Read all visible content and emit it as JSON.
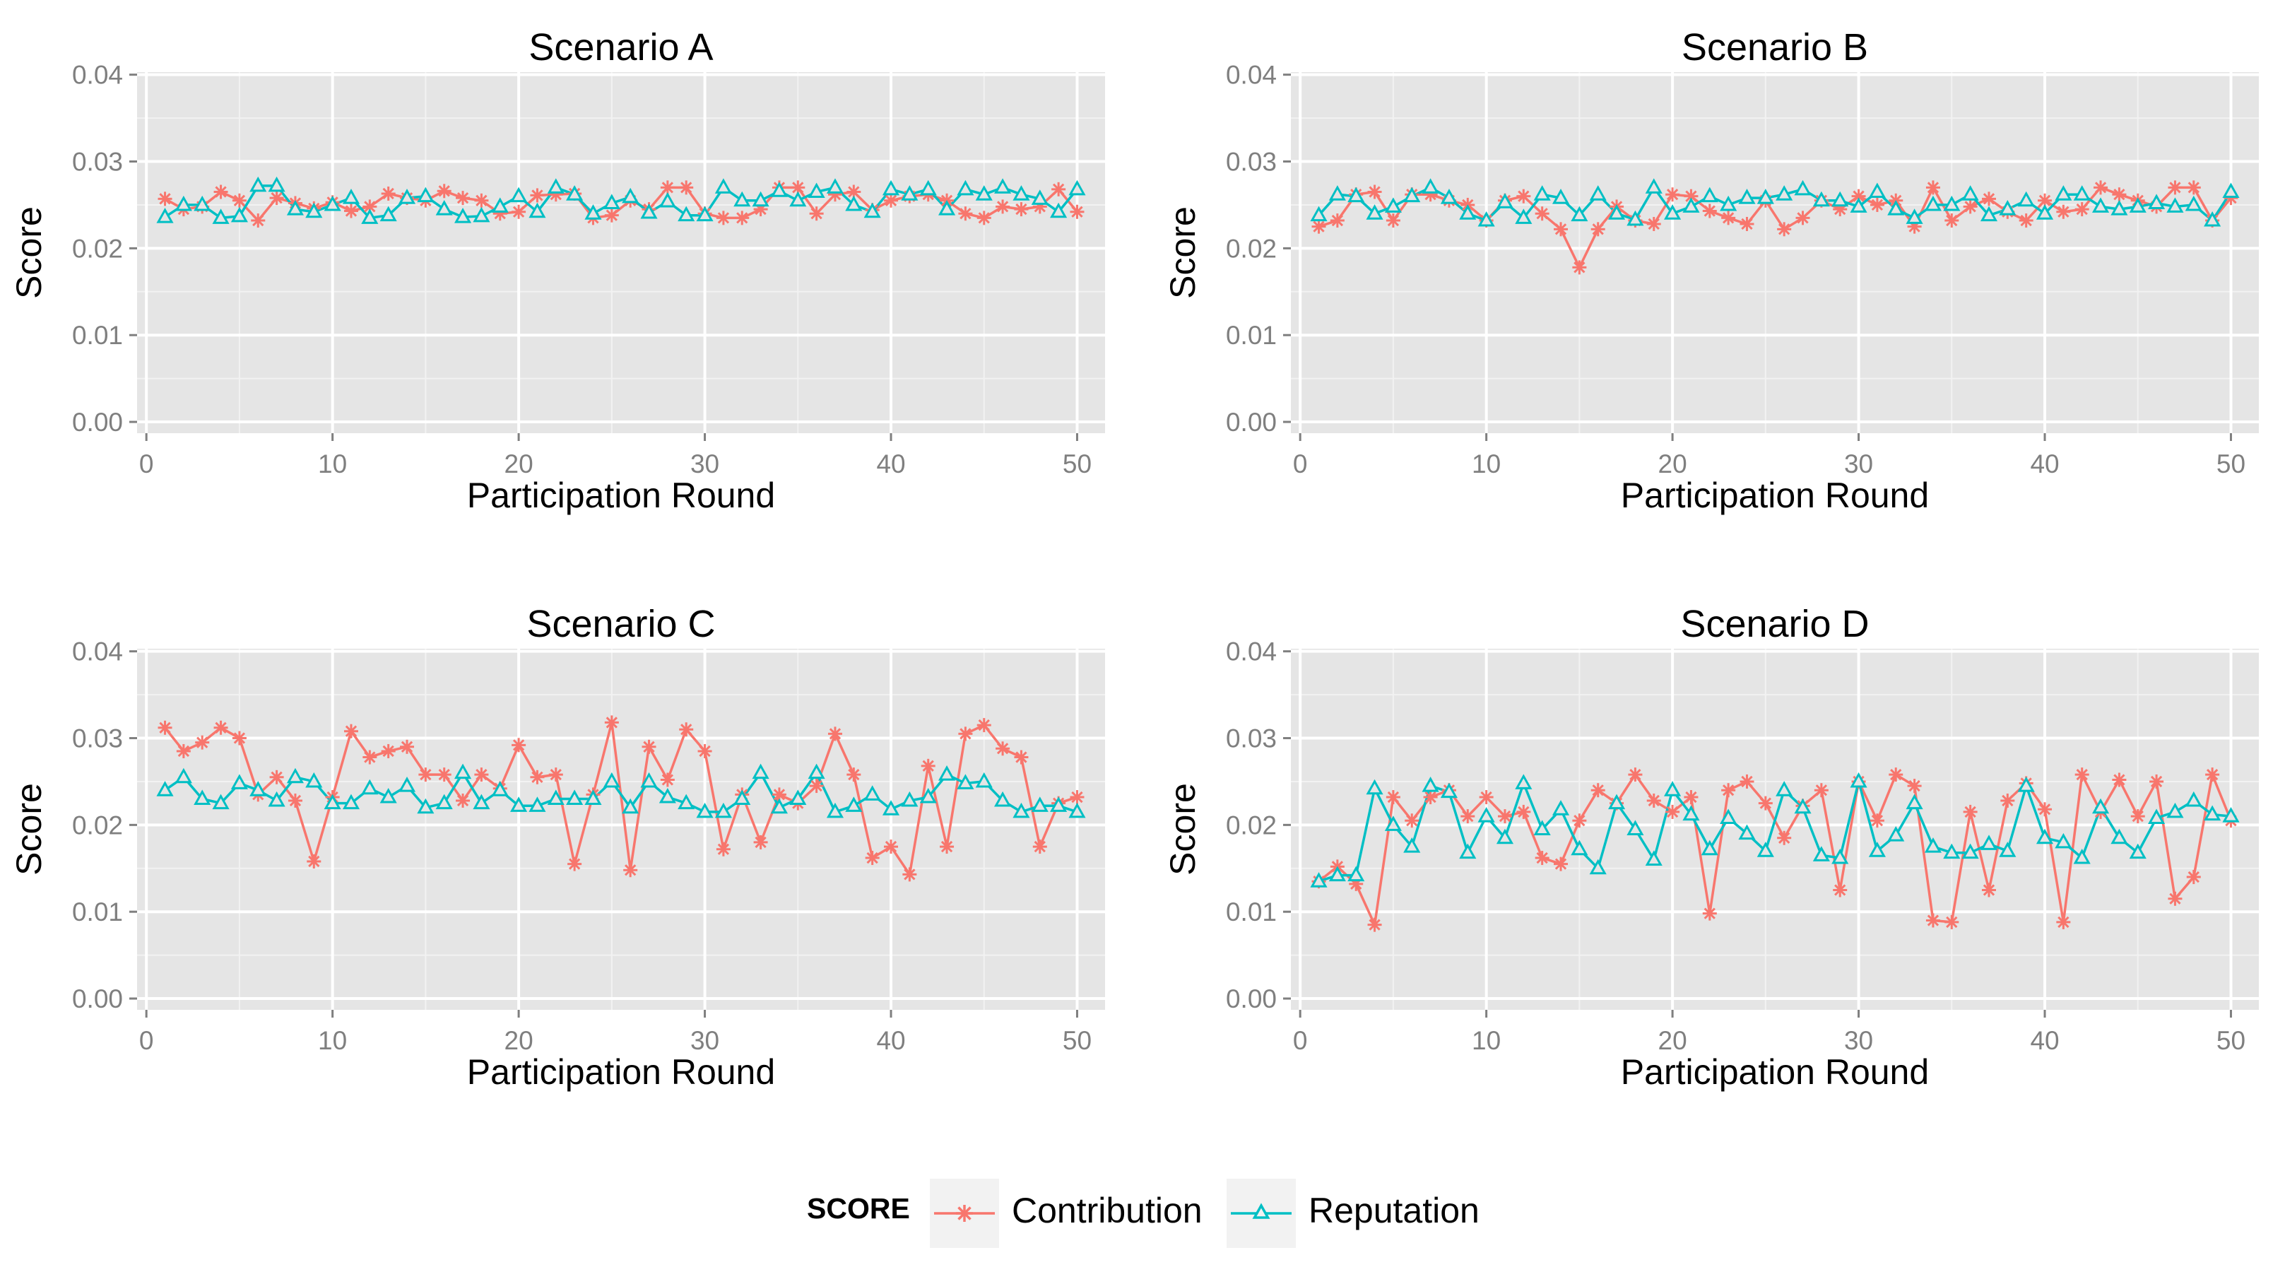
{
  "legend": {
    "title": "SCORE",
    "items": [
      {
        "label": "Contribution",
        "color": "#F8766D",
        "marker": "asterisk"
      },
      {
        "label": "Reputation",
        "color": "#00BFC4",
        "marker": "triangle"
      }
    ]
  },
  "chart_data": [
    {
      "type": "line",
      "title": "Scenario A",
      "xlabel": "Participation Round",
      "ylabel": "Score",
      "xlim": [
        -0.5,
        51.5
      ],
      "ylim": [
        -0.0013,
        0.0403
      ],
      "xticks": [
        0,
        10,
        20,
        30,
        40,
        50
      ],
      "yticks": [
        0.0,
        0.01,
        0.02,
        0.03,
        0.04
      ],
      "ytick_labels": [
        "0.00",
        "0.01",
        "0.02",
        "0.03",
        "0.04"
      ],
      "grid": true,
      "x": [
        1,
        2,
        3,
        4,
        5,
        6,
        7,
        8,
        9,
        10,
        11,
        12,
        13,
        14,
        15,
        16,
        17,
        18,
        19,
        20,
        21,
        22,
        23,
        24,
        25,
        26,
        27,
        28,
        29,
        30,
        31,
        32,
        33,
        34,
        35,
        36,
        37,
        38,
        39,
        40,
        41,
        42,
        43,
        44,
        45,
        46,
        47,
        48,
        49,
        50
      ],
      "series": [
        {
          "name": "Contribution",
          "values": [
            0.0257,
            0.0245,
            0.0248,
            0.0265,
            0.0255,
            0.0232,
            0.0258,
            0.0252,
            0.0246,
            0.0253,
            0.0243,
            0.0248,
            0.0263,
            0.0258,
            0.0255,
            0.0266,
            0.0258,
            0.0255,
            0.024,
            0.0242,
            0.0261,
            0.0262,
            0.0263,
            0.0235,
            0.0238,
            0.0255,
            0.0245,
            0.027,
            0.027,
            0.024,
            0.0235,
            0.0235,
            0.0245,
            0.027,
            0.027,
            0.024,
            0.0262,
            0.0265,
            0.0244,
            0.0255,
            0.026,
            0.0262,
            0.0255,
            0.024,
            0.0235,
            0.0248,
            0.0245,
            0.0248,
            0.0268,
            0.0242
          ]
        },
        {
          "name": "Reputation",
          "values": [
            0.0236,
            0.025,
            0.025,
            0.0235,
            0.0237,
            0.0272,
            0.0272,
            0.0245,
            0.0242,
            0.025,
            0.0258,
            0.0235,
            0.0238,
            0.0258,
            0.026,
            0.0245,
            0.0236,
            0.0237,
            0.0248,
            0.026,
            0.0242,
            0.027,
            0.0262,
            0.024,
            0.0252,
            0.0259,
            0.0241,
            0.0254,
            0.0238,
            0.0238,
            0.027,
            0.0255,
            0.0255,
            0.0266,
            0.0255,
            0.0265,
            0.027,
            0.025,
            0.0242,
            0.0268,
            0.0262,
            0.0268,
            0.0245,
            0.0268,
            0.0262,
            0.027,
            0.0262,
            0.0257,
            0.0242,
            0.0268
          ]
        }
      ]
    },
    {
      "type": "line",
      "title": "Scenario B",
      "xlabel": "Participation Round",
      "ylabel": "Score",
      "xlim": [
        -0.5,
        51.5
      ],
      "ylim": [
        -0.0013,
        0.0403
      ],
      "xticks": [
        0,
        10,
        20,
        30,
        40,
        50
      ],
      "yticks": [
        0.0,
        0.01,
        0.02,
        0.03,
        0.04
      ],
      "ytick_labels": [
        "0.00",
        "0.01",
        "0.02",
        "0.03",
        "0.04"
      ],
      "grid": true,
      "x": [
        1,
        2,
        3,
        4,
        5,
        6,
        7,
        8,
        9,
        10,
        11,
        12,
        13,
        14,
        15,
        16,
        17,
        18,
        19,
        20,
        21,
        22,
        23,
        24,
        25,
        26,
        27,
        28,
        29,
        30,
        31,
        32,
        33,
        34,
        35,
        36,
        37,
        38,
        39,
        40,
        41,
        42,
        43,
        44,
        45,
        46,
        47,
        48,
        49,
        50
      ],
      "series": [
        {
          "name": "Contribution",
          "values": [
            0.0225,
            0.0232,
            0.0262,
            0.0265,
            0.0232,
            0.0262,
            0.0262,
            0.0255,
            0.025,
            0.0232,
            0.0255,
            0.026,
            0.024,
            0.0222,
            0.0178,
            0.0222,
            0.0248,
            0.0232,
            0.0228,
            0.0262,
            0.026,
            0.0243,
            0.0235,
            0.0228,
            0.0255,
            0.0222,
            0.0235,
            0.0255,
            0.0245,
            0.026,
            0.025,
            0.0255,
            0.0225,
            0.027,
            0.0232,
            0.0248,
            0.0257,
            0.0242,
            0.0232,
            0.0255,
            0.0242,
            0.0245,
            0.027,
            0.0262,
            0.0255,
            0.0248,
            0.027,
            0.027,
            0.0232,
            0.0258
          ]
        },
        {
          "name": "Reputation",
          "values": [
            0.0238,
            0.0262,
            0.026,
            0.024,
            0.0248,
            0.026,
            0.027,
            0.0258,
            0.024,
            0.0232,
            0.0253,
            0.0235,
            0.0262,
            0.0258,
            0.0238,
            0.0262,
            0.024,
            0.0233,
            0.027,
            0.024,
            0.0248,
            0.026,
            0.025,
            0.0258,
            0.0258,
            0.0262,
            0.0268,
            0.0255,
            0.0255,
            0.0248,
            0.0265,
            0.0245,
            0.0235,
            0.025,
            0.025,
            0.0262,
            0.0238,
            0.0245,
            0.0255,
            0.024,
            0.0262,
            0.0262,
            0.0248,
            0.0245,
            0.0248,
            0.0252,
            0.0248,
            0.025,
            0.0232,
            0.0265
          ]
        }
      ]
    },
    {
      "type": "line",
      "title": "Scenario C",
      "xlabel": "Participation Round",
      "ylabel": "Score",
      "xlim": [
        -0.5,
        51.5
      ],
      "ylim": [
        -0.0013,
        0.0403
      ],
      "xticks": [
        0,
        10,
        20,
        30,
        40,
        50
      ],
      "yticks": [
        0.0,
        0.01,
        0.02,
        0.03,
        0.04
      ],
      "ytick_labels": [
        "0.00",
        "0.01",
        "0.02",
        "0.03",
        "0.04"
      ],
      "grid": true,
      "x": [
        1,
        2,
        3,
        4,
        5,
        6,
        7,
        8,
        9,
        10,
        11,
        12,
        13,
        14,
        15,
        16,
        17,
        18,
        19,
        20,
        21,
        22,
        23,
        24,
        25,
        26,
        27,
        28,
        29,
        30,
        31,
        32,
        33,
        34,
        35,
        36,
        37,
        38,
        39,
        40,
        41,
        42,
        43,
        44,
        45,
        46,
        47,
        48,
        49,
        50
      ],
      "series": [
        {
          "name": "Contribution",
          "values": [
            0.0312,
            0.0285,
            0.0295,
            0.0312,
            0.03,
            0.0235,
            0.0255,
            0.0228,
            0.0158,
            0.0232,
            0.0308,
            0.0278,
            0.0285,
            0.029,
            0.0258,
            0.0258,
            0.0228,
            0.0258,
            0.0242,
            0.0292,
            0.0255,
            0.0258,
            0.0155,
            0.0235,
            0.0318,
            0.0148,
            0.029,
            0.0252,
            0.031,
            0.0285,
            0.0172,
            0.0235,
            0.018,
            0.0235,
            0.0225,
            0.0245,
            0.0305,
            0.0258,
            0.0162,
            0.0175,
            0.0143,
            0.0268,
            0.0175,
            0.0305,
            0.0315,
            0.0288,
            0.0278,
            0.0175,
            0.0225,
            0.0232
          ]
        },
        {
          "name": "Reputation",
          "values": [
            0.024,
            0.0255,
            0.023,
            0.0225,
            0.0248,
            0.024,
            0.0228,
            0.0255,
            0.025,
            0.0225,
            0.0225,
            0.0242,
            0.0232,
            0.0245,
            0.022,
            0.0225,
            0.026,
            0.0225,
            0.024,
            0.0222,
            0.0222,
            0.023,
            0.023,
            0.023,
            0.025,
            0.022,
            0.025,
            0.0232,
            0.0225,
            0.0215,
            0.0215,
            0.023,
            0.026,
            0.022,
            0.023,
            0.026,
            0.0215,
            0.0222,
            0.0235,
            0.0218,
            0.0228,
            0.0232,
            0.0258,
            0.0248,
            0.025,
            0.0228,
            0.0215,
            0.0222,
            0.0222,
            0.0215
          ]
        }
      ]
    },
    {
      "type": "line",
      "title": "Scenario D",
      "xlabel": "Participation Round",
      "ylabel": "Score",
      "xlim": [
        -0.5,
        51.5
      ],
      "ylim": [
        -0.0013,
        0.0403
      ],
      "xticks": [
        0,
        10,
        20,
        30,
        40,
        50
      ],
      "yticks": [
        0.0,
        0.01,
        0.02,
        0.03,
        0.04
      ],
      "ytick_labels": [
        "0.00",
        "0.01",
        "0.02",
        "0.03",
        "0.04"
      ],
      "grid": true,
      "x": [
        1,
        2,
        3,
        4,
        5,
        6,
        7,
        8,
        9,
        10,
        11,
        12,
        13,
        14,
        15,
        16,
        17,
        18,
        19,
        20,
        21,
        22,
        23,
        24,
        25,
        26,
        27,
        28,
        29,
        30,
        31,
        32,
        33,
        34,
        35,
        36,
        37,
        38,
        39,
        40,
        41,
        42,
        43,
        44,
        45,
        46,
        47,
        48,
        49,
        50
      ],
      "series": [
        {
          "name": "Contribution",
          "values": [
            0.0135,
            0.0152,
            0.0132,
            0.0085,
            0.0232,
            0.0205,
            0.0232,
            0.024,
            0.021,
            0.0232,
            0.021,
            0.0215,
            0.0162,
            0.0155,
            0.0205,
            0.024,
            0.0225,
            0.0258,
            0.0228,
            0.0215,
            0.0232,
            0.0098,
            0.024,
            0.025,
            0.0225,
            0.0185,
            0.0222,
            0.024,
            0.0125,
            0.025,
            0.0205,
            0.0258,
            0.0245,
            0.009,
            0.0088,
            0.0215,
            0.0125,
            0.0228,
            0.0248,
            0.0218,
            0.0088,
            0.0258,
            0.0215,
            0.0252,
            0.021,
            0.025,
            0.0115,
            0.014,
            0.0258,
            0.0205
          ]
        },
        {
          "name": "Reputation",
          "values": [
            0.0135,
            0.0142,
            0.0142,
            0.0242,
            0.02,
            0.0175,
            0.0245,
            0.0238,
            0.0168,
            0.021,
            0.0185,
            0.0248,
            0.0195,
            0.0218,
            0.0172,
            0.015,
            0.0225,
            0.0195,
            0.016,
            0.024,
            0.0212,
            0.0172,
            0.0208,
            0.019,
            0.017,
            0.024,
            0.022,
            0.0165,
            0.0162,
            0.025,
            0.017,
            0.0188,
            0.0225,
            0.0175,
            0.0168,
            0.0168,
            0.0178,
            0.017,
            0.0245,
            0.0185,
            0.018,
            0.0162,
            0.022,
            0.0185,
            0.0168,
            0.0208,
            0.0215,
            0.0228,
            0.0212,
            0.021
          ]
        }
      ]
    }
  ]
}
